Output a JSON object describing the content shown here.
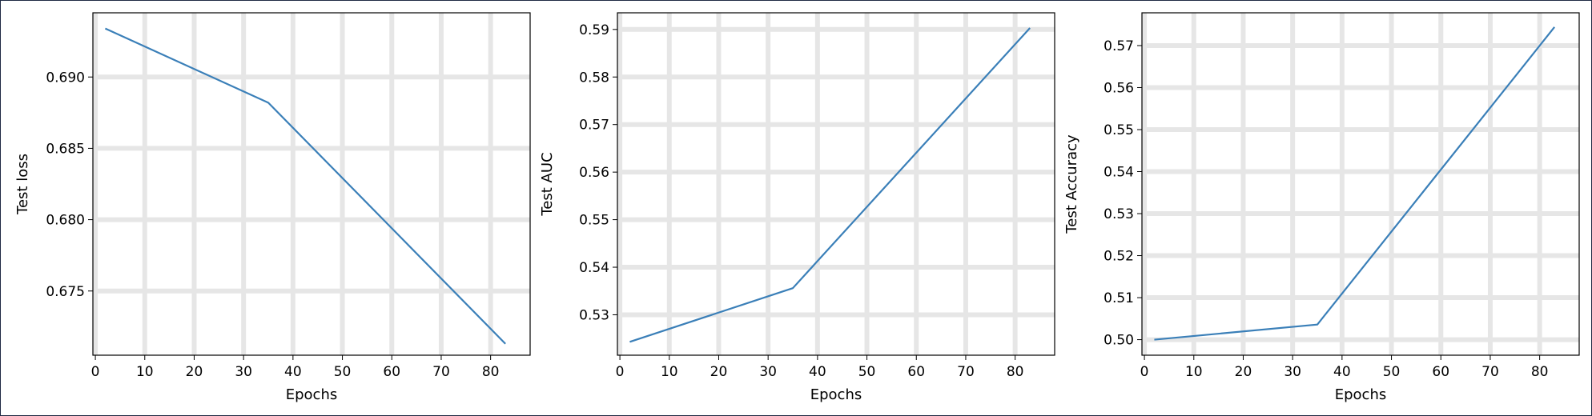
{
  "chart_data": [
    {
      "type": "line",
      "xlabel": "Epochs",
      "ylabel": "Test loss",
      "x": [
        2,
        35,
        83
      ],
      "y": [
        0.6934,
        0.6882,
        0.6713
      ],
      "xlim": [
        -0.5,
        88
      ],
      "ylim": [
        0.6705,
        0.6945
      ],
      "xticks": [
        0,
        10,
        20,
        30,
        40,
        50,
        60,
        70,
        80
      ],
      "yticks": [
        0.675,
        0.68,
        0.685,
        0.69
      ],
      "ytick_labels": [
        "0.675",
        "0.680",
        "0.685",
        "0.690"
      ],
      "grid": true,
      "line_color": "#3a7fb8"
    },
    {
      "type": "line",
      "xlabel": "Epochs",
      "ylabel": "Test AUC",
      "x": [
        2,
        35,
        83
      ],
      "y": [
        0.5243,
        0.5356,
        0.5903
      ],
      "xlim": [
        -0.5,
        88
      ],
      "ylim": [
        0.5215,
        0.5935
      ],
      "xticks": [
        0,
        10,
        20,
        30,
        40,
        50,
        60,
        70,
        80
      ],
      "yticks": [
        0.53,
        0.54,
        0.55,
        0.56,
        0.57,
        0.58,
        0.59
      ],
      "ytick_labels": [
        "0.53",
        "0.54",
        "0.55",
        "0.56",
        "0.57",
        "0.58",
        "0.59"
      ],
      "grid": true,
      "line_color": "#3a7fb8"
    },
    {
      "type": "line",
      "xlabel": "Epochs",
      "ylabel": "Test Accuracy",
      "x": [
        2,
        35,
        83
      ],
      "y": [
        0.5,
        0.5036,
        0.5744
      ],
      "xlim": [
        -0.5,
        88
      ],
      "ylim": [
        0.4963,
        0.5778
      ],
      "xticks": [
        0,
        10,
        20,
        30,
        40,
        50,
        60,
        70,
        80
      ],
      "yticks": [
        0.5,
        0.51,
        0.52,
        0.53,
        0.54,
        0.55,
        0.56,
        0.57
      ],
      "ytick_labels": [
        "0.50",
        "0.51",
        "0.52",
        "0.53",
        "0.54",
        "0.55",
        "0.56",
        "0.57"
      ],
      "grid": true,
      "line_color": "#3a7fb8"
    }
  ]
}
